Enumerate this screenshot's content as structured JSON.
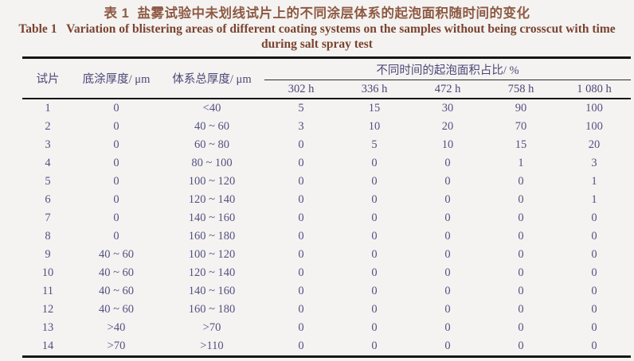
{
  "title": {
    "zh": "表 1  盐雾试验中未划线试片上的不同涂层体系的起泡面积随时间的变化",
    "en_line1": "Table 1   Variation of blistering areas of different coating systems on the samples without being crosscut with time",
    "en_line2": "during salt spray test"
  },
  "colors": {
    "title_zh": "#8e5a44",
    "title_en": "#7a4330",
    "table_text": "#545080",
    "header_text": "#4c4777",
    "rule": "#161616",
    "background": "#f4f3f1"
  },
  "table": {
    "headers": {
      "sample": "试片",
      "primer_thickness": "底涂厚度/ μm",
      "total_thickness": "体系总厚度/ μm",
      "spanner": "不同时间的起泡面积占比/ %",
      "time_columns": [
        "302 h",
        "336 h",
        "472 h",
        "758 h",
        "1 080 h"
      ]
    },
    "rows": [
      [
        "1",
        "0",
        "<40",
        "5",
        "15",
        "30",
        "90",
        "100"
      ],
      [
        "2",
        "0",
        "40 ~ 60",
        "3",
        "10",
        "20",
        "70",
        "100"
      ],
      [
        "3",
        "0",
        "60 ~ 80",
        "0",
        "5",
        "10",
        "15",
        "20"
      ],
      [
        "4",
        "0",
        "80 ~ 100",
        "0",
        "0",
        "0",
        "1",
        "3"
      ],
      [
        "5",
        "0",
        "100 ~ 120",
        "0",
        "0",
        "0",
        "0",
        "1"
      ],
      [
        "6",
        "0",
        "120 ~ 140",
        "0",
        "0",
        "0",
        "0",
        "1"
      ],
      [
        "7",
        "0",
        "140 ~ 160",
        "0",
        "0",
        "0",
        "0",
        "0"
      ],
      [
        "8",
        "0",
        "160 ~ 180",
        "0",
        "0",
        "0",
        "0",
        "0"
      ],
      [
        "9",
        "40 ~ 60",
        "100 ~ 120",
        "0",
        "0",
        "0",
        "0",
        "0"
      ],
      [
        "10",
        "40 ~ 60",
        "120 ~ 140",
        "0",
        "0",
        "0",
        "0",
        "0"
      ],
      [
        "11",
        "40 ~ 60",
        "140 ~ 160",
        "0",
        "0",
        "0",
        "0",
        "0"
      ],
      [
        "12",
        "40 ~ 60",
        "160 ~ 180",
        "0",
        "0",
        "0",
        "0",
        "0"
      ],
      [
        "13",
        ">40",
        ">70",
        "0",
        "0",
        "0",
        "0",
        "0"
      ],
      [
        "14",
        ">70",
        ">110",
        "0",
        "0",
        "0",
        "0",
        "0"
      ]
    ]
  }
}
